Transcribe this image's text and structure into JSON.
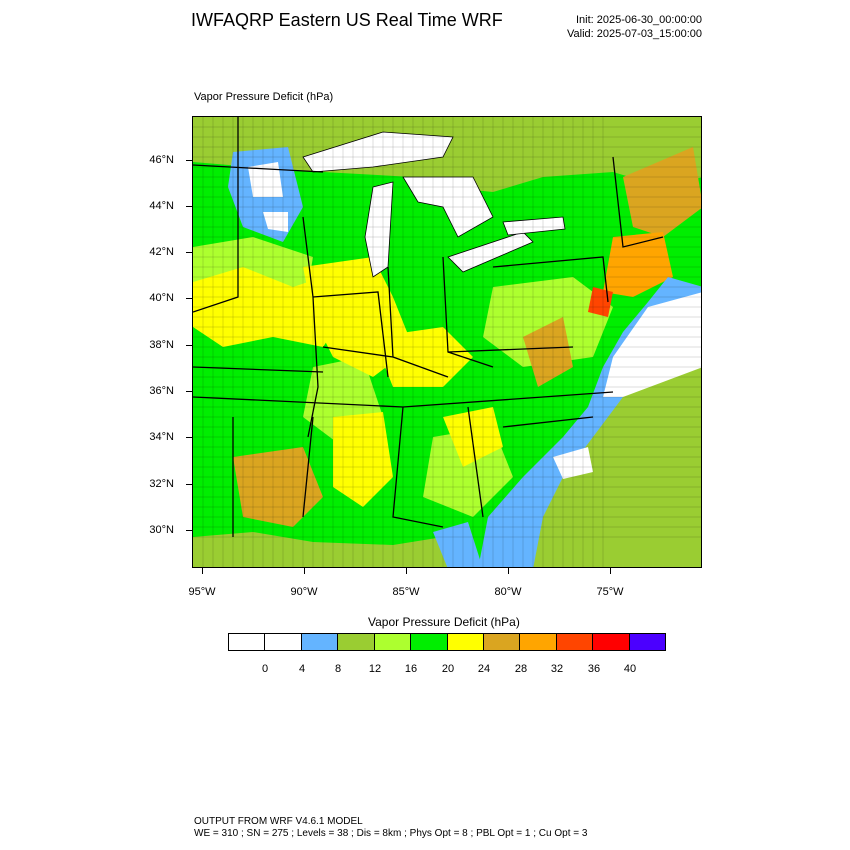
{
  "header": {
    "title": "IWFAQRP Eastern US Real Time WRF",
    "init": "Init: 2025-06-30_00:00:00",
    "valid": "Valid: 2025-07-03_15:00:00"
  },
  "map": {
    "field_label": "Vapor Pressure Deficit   (hPa)",
    "lat_labels": [
      "46°N",
      "44°N",
      "42°N",
      "40°N",
      "38°N",
      "36°N",
      "34°N",
      "32°N",
      "30°N"
    ],
    "lon_labels": [
      "95°W",
      "90°W",
      "85°W",
      "80°W",
      "75°W"
    ]
  },
  "colorbar": {
    "title": "Vapor Pressure Deficit   (hPa)",
    "colors": [
      "#ffffff",
      "#ffffff",
      "#64b4ff",
      "#9acd32",
      "#adff2f",
      "#00ee00",
      "#ffff00",
      "#daa520",
      "#ffa500",
      "#ff4500",
      "#ff0000",
      "#4b00ff"
    ],
    "labels": [
      "0",
      "4",
      "8",
      "12",
      "16",
      "20",
      "24",
      "28",
      "32",
      "36",
      "40"
    ]
  },
  "footer": {
    "line1": "OUTPUT FROM WRF V4.6.1 MODEL",
    "line2": "WE = 310 ; SN = 275 ; Levels = 38 ; Dis = 8km ; Phys Opt = 8 ; PBL Opt = 1 ; Cu Opt = 3"
  }
}
